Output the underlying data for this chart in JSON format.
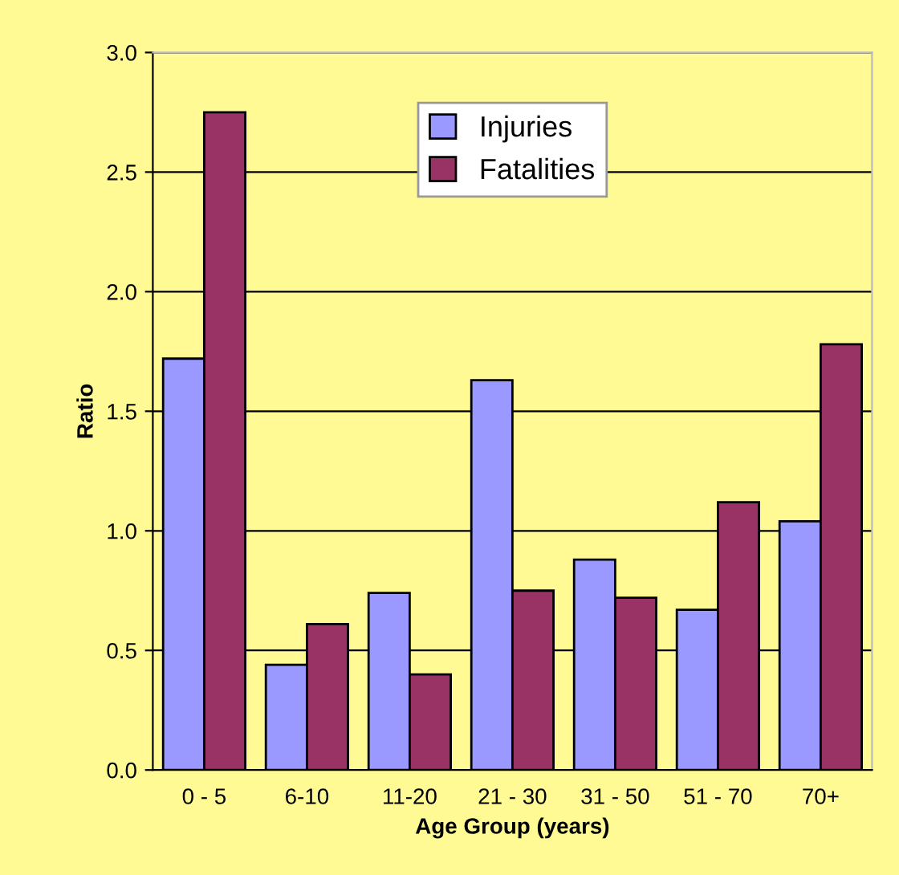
{
  "chart_data": {
    "type": "bar",
    "xlabel": "Age Group (years)",
    "ylabel": "Ratio",
    "categories": [
      "0 - 5",
      "6-10",
      "11-20",
      "21 - 30",
      "31 - 50",
      "51 - 70",
      "70+"
    ],
    "series": [
      {
        "name": "Injuries",
        "color": "#9999ff",
        "values": [
          1.72,
          0.44,
          0.74,
          1.63,
          0.88,
          0.67,
          1.04
        ]
      },
      {
        "name": "Fatalities",
        "color": "#993366",
        "values": [
          2.75,
          0.61,
          0.4,
          0.75,
          0.72,
          1.12,
          1.78
        ]
      }
    ],
    "ylim": [
      0,
      3
    ],
    "yticks": [
      {
        "value": 0,
        "label": "0.0"
      },
      {
        "value": 0.5,
        "label": "0.5"
      },
      {
        "value": 1,
        "label": "1.0"
      },
      {
        "value": 1.5,
        "label": "1.5"
      },
      {
        "value": 2,
        "label": "2.0"
      },
      {
        "value": 2.5,
        "label": "2.5"
      },
      {
        "value": 3,
        "label": "3.0"
      }
    ],
    "grid": "y",
    "legend": "top"
  }
}
